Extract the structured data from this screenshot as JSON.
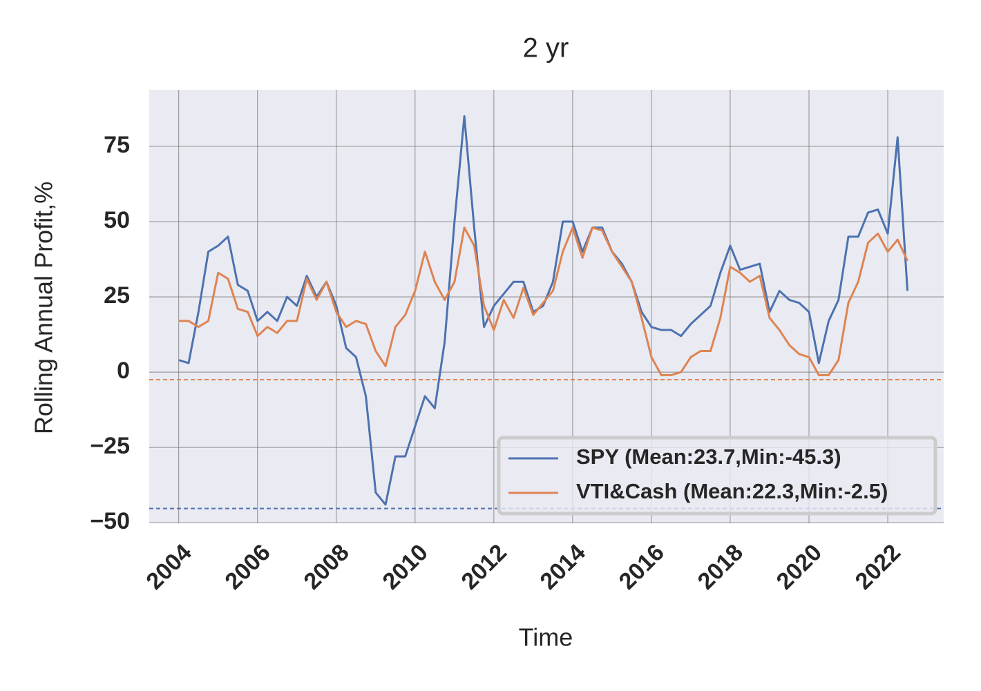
{
  "chart_data": {
    "type": "line",
    "title": "2 yr",
    "x_label": "Time",
    "y_label": "Rolling Annual Profit,%",
    "x": [
      2004,
      2004.25,
      2004.5,
      2004.75,
      2005,
      2005.25,
      2005.5,
      2005.75,
      2006,
      2006.25,
      2006.5,
      2006.75,
      2007,
      2007.25,
      2007.5,
      2007.75,
      2008,
      2008.25,
      2008.5,
      2008.75,
      2009,
      2009.25,
      2009.5,
      2009.75,
      2010,
      2010.25,
      2010.5,
      2010.75,
      2011,
      2011.25,
      2011.5,
      2011.75,
      2012,
      2012.25,
      2012.5,
      2012.75,
      2013,
      2013.25,
      2013.5,
      2013.75,
      2014,
      2014.25,
      2014.5,
      2014.75,
      2015,
      2015.25,
      2015.5,
      2015.75,
      2016,
      2016.25,
      2016.5,
      2016.75,
      2017,
      2017.25,
      2017.5,
      2017.75,
      2018,
      2018.25,
      2018.5,
      2018.75,
      2019,
      2019.25,
      2019.5,
      2019.75,
      2020,
      2020.25,
      2020.5,
      2020.75,
      2021,
      2021.25,
      2021.5,
      2021.75,
      2022,
      2022.25,
      2022.5
    ],
    "series": [
      {
        "name": "SPY (Mean:23.7,Min:-45.3)",
        "color": "#4c72b0",
        "values": [
          4,
          3,
          20,
          40,
          42,
          45,
          29,
          27,
          17,
          20,
          17,
          25,
          22,
          32,
          25,
          30,
          22,
          8,
          5,
          -8,
          -40,
          -44,
          -28,
          -28,
          -18,
          -8,
          -12,
          10,
          50,
          85,
          48,
          15,
          22,
          26,
          30,
          30,
          20,
          22,
          30,
          50,
          50,
          40,
          48,
          48,
          40,
          36,
          30,
          20,
          15,
          14,
          14,
          12,
          16,
          19,
          22,
          33,
          42,
          34,
          35,
          36,
          20,
          27,
          24,
          23,
          20,
          3,
          17,
          24,
          45,
          45,
          53,
          54,
          46,
          78,
          27
        ]
      },
      {
        "name": "VTI&Cash (Mean:22.3,Min:-2.5)",
        "color": "#dd8452",
        "values": [
          17,
          17,
          15,
          17,
          33,
          31,
          21,
          20,
          12,
          15,
          13,
          17,
          17,
          31,
          24,
          30,
          20,
          15,
          17,
          16,
          7,
          2,
          15,
          19,
          27,
          40,
          30,
          24,
          30,
          48,
          42,
          22,
          14,
          24,
          18,
          28,
          19,
          23,
          27,
          40,
          48,
          38,
          48,
          47,
          40,
          35,
          30,
          18,
          5,
          -1,
          -1,
          0,
          5,
          7,
          7,
          18,
          35,
          33,
          30,
          32,
          18,
          14,
          9,
          6,
          5,
          -1,
          -1,
          4,
          23,
          30,
          43,
          46,
          40,
          44,
          37
        ]
      }
    ],
    "reference_lines": [
      {
        "value": -45.3,
        "color": "#4c72b0"
      },
      {
        "value": -2.5,
        "color": "#dd8452"
      }
    ],
    "xlim": [
      2003.25,
      2023.42
    ],
    "ylim": [
      -50.2,
      93.8
    ],
    "xticks": [
      2004,
      2006,
      2008,
      2010,
      2012,
      2014,
      2016,
      2018,
      2020,
      2022
    ],
    "yticks": [
      {
        "value": -50,
        "label": "−50"
      },
      {
        "value": -25,
        "label": "−25"
      },
      0,
      25,
      50,
      75
    ],
    "grid": true,
    "legend": "lower right"
  }
}
